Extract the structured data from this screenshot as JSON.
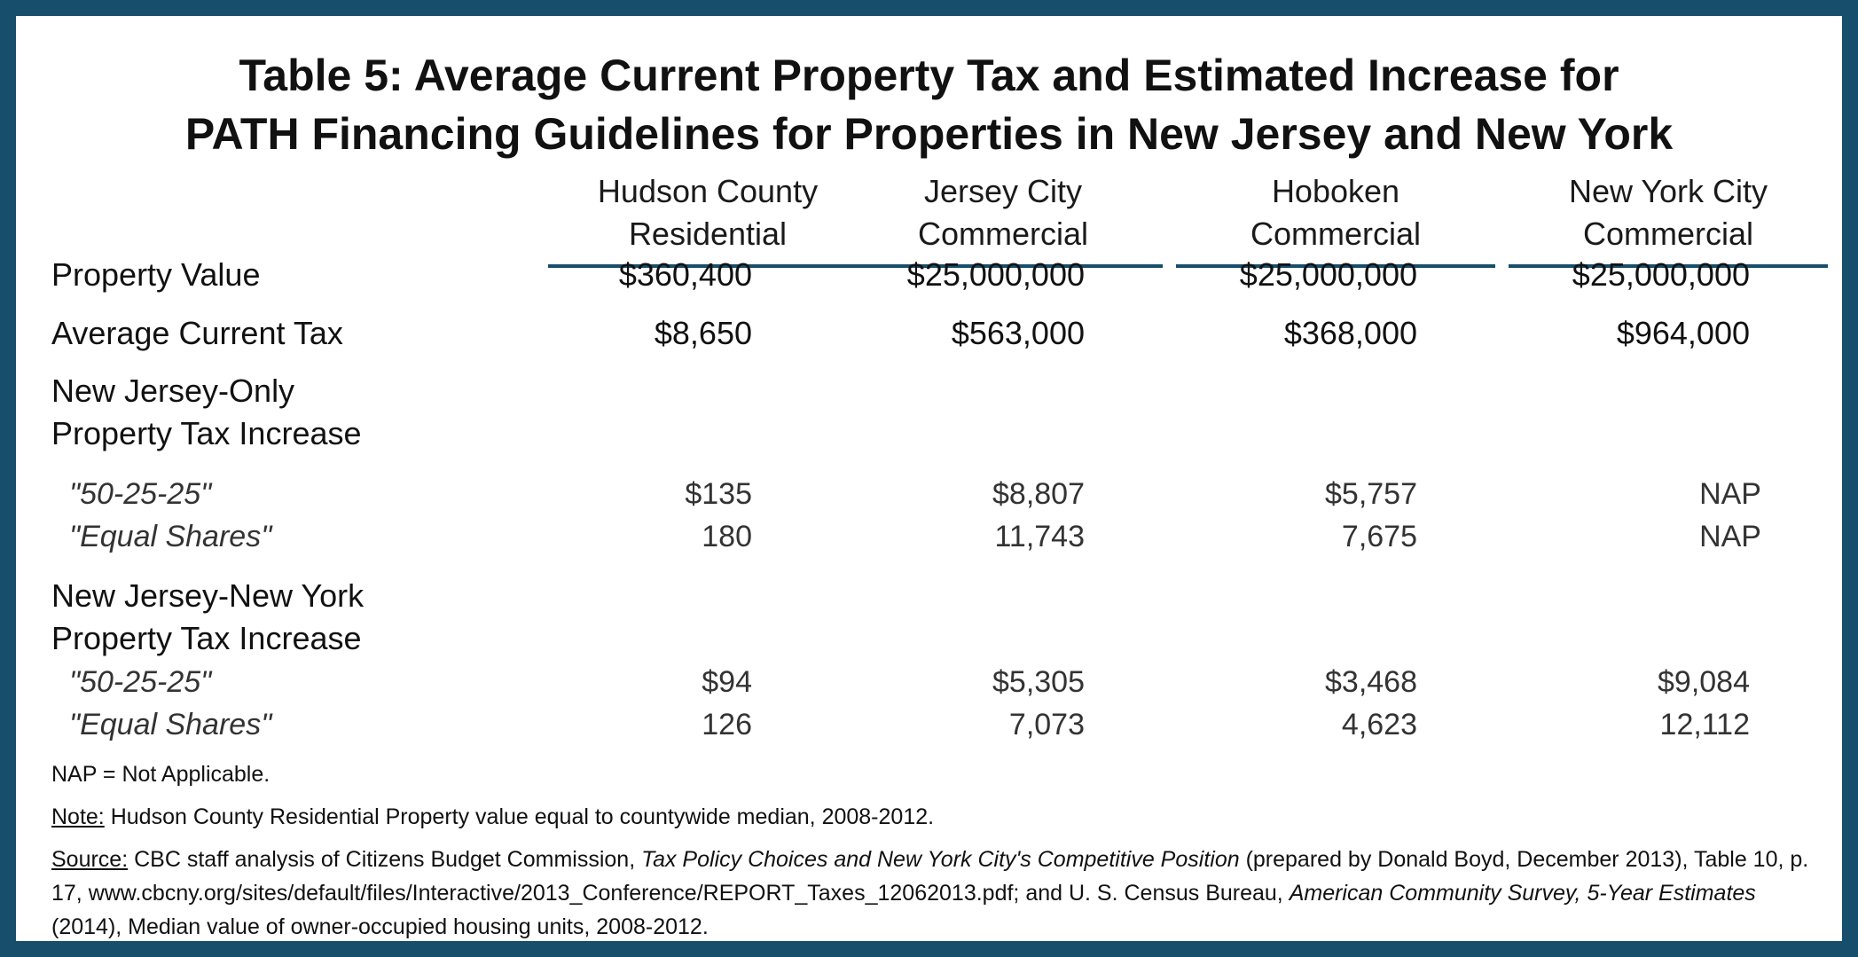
{
  "title": {
    "line1": "Table 5: Average Current Property Tax and Estimated Increase for",
    "line2": "PATH Financing Guidelines for Properties in New Jersey and New York"
  },
  "columns": [
    {
      "line1": "Hudson County",
      "line2": "Residential"
    },
    {
      "line1": "Jersey City",
      "line2": "Commercial"
    },
    {
      "line1": "Hoboken",
      "line2": "Commercial"
    },
    {
      "line1": "New York City",
      "line2": "Commercial"
    }
  ],
  "rows": {
    "property_value": {
      "label": "Property Value",
      "values": [
        "$360,400",
        "$25,000,000",
        "$25,000,000",
        "$25,000,000"
      ]
    },
    "avg_current_tax": {
      "label": "Average Current Tax",
      "values": [
        "$8,650",
        "$563,000",
        "$368,000",
        "$964,000"
      ]
    },
    "nj_only": {
      "label_line1": "New Jersey-Only",
      "label_line2": "Property Tax Increase",
      "sub": [
        {
          "label": "\"50-25-25\"",
          "values": [
            "$135",
            "$8,807",
            "$5,757",
            "NAP"
          ]
        },
        {
          "label": "\"Equal Shares\"",
          "values": [
            "180",
            "11,743",
            "7,675",
            "NAP"
          ]
        }
      ]
    },
    "nj_ny": {
      "label_line1": "New Jersey-New York",
      "label_line2": "Property Tax Increase",
      "sub": [
        {
          "label": "\"50-25-25\"",
          "values": [
            "$94",
            "$5,305",
            "$3,468",
            "$9,084"
          ]
        },
        {
          "label": "\"Equal Shares\"",
          "values": [
            "126",
            "7,073",
            "4,623",
            "12,112"
          ]
        }
      ]
    }
  },
  "footnotes": {
    "nap": "NAP = Not Applicable.",
    "note_label": "Note:",
    "note_text": " Hudson County Residential Property value equal to countywide median, 2008-2012.",
    "source_label": "Source:",
    "source_part1": " CBC staff analysis of Citizens Budget Commission, ",
    "source_italic1": "Tax Policy Choices and New York City's Competitive Position",
    "source_part2": "  (prepared by Donald Boyd, December 2013), Table 10, p. 17, www.cbcny.org/sites/default/files/Interactive/2013_Conference/REPORT_Taxes_12062013.pdf; and U. S. Census Bureau, ",
    "source_italic2": "American Community Survey, 5-Year Estimates",
    "source_part3": "  (2014), Median value of owner-occupied housing units, 2008-2012."
  },
  "colors": {
    "border": "#164e6b",
    "text": "#111111"
  }
}
